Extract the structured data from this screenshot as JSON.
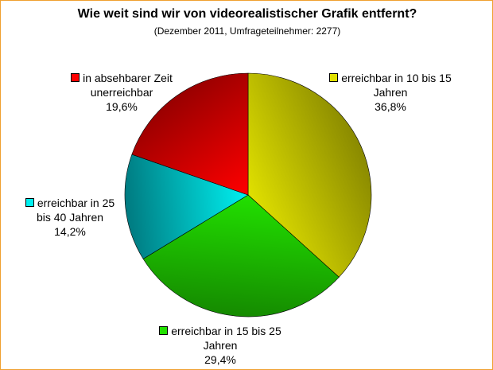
{
  "chart_data": {
    "type": "pie",
    "title": "Wie weit sind wir von videorealistischer Grafik entfernt?",
    "subtitle": "(Dezember 2011, Umfrageteilnehmer: 2277)",
    "slices": [
      {
        "name": "erreichbar in 10 bis 15 Jahren",
        "line1": "erreichbar in 10 bis 15",
        "line2": "Jahren",
        "value_label": "36,8%",
        "value": 36.8,
        "color": "#e0e000",
        "dark": "#8a8a00"
      },
      {
        "name": "erreichbar in 15 bis 25 Jahren",
        "line1": "erreichbar in 15 bis 25",
        "line2": "Jahren",
        "value_label": "29,4%",
        "value": 29.4,
        "color": "#22e000",
        "dark": "#158a00"
      },
      {
        "name": "erreichbar in 25 bis 40 Jahren",
        "line1": "erreichbar in 25",
        "line2": "bis 40 Jahren",
        "value_label": "14,2%",
        "value": 14.2,
        "color": "#00f0f0",
        "dark": "#007a80"
      },
      {
        "name": "in absehbarer Zeit unerreichbar",
        "line1": "in absehbarer Zeit",
        "line2": "unerreichbar",
        "value_label": "19,6%",
        "value": 19.6,
        "color": "#ff0000",
        "dark": "#990000"
      }
    ],
    "legend": "labels-beside-slices"
  }
}
